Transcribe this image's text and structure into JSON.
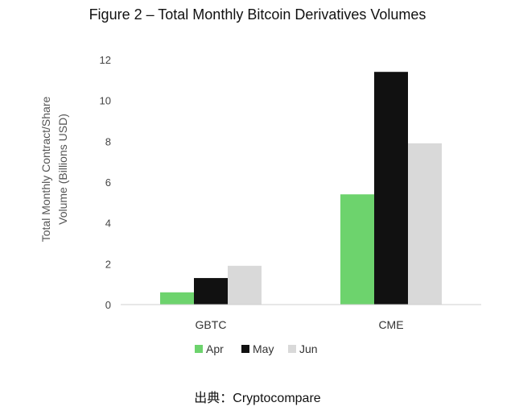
{
  "title": "Figure 2 – Total Monthly Bitcoin Derivatives Volumes",
  "source": "出典：Cryptocompare",
  "chart_data": {
    "type": "bar",
    "title": "Figure 2 – Total Monthly Bitcoin Derivatives Volumes",
    "ylabel_lines": [
      "Total Monthly Contract/Share",
      "Volume (Billions USD)"
    ],
    "categories": [
      "GBTC",
      "CME"
    ],
    "series": [
      {
        "name": "Apr",
        "color": "#6dd36d",
        "values": [
          0.6,
          5.4
        ]
      },
      {
        "name": "May",
        "color": "#111111",
        "values": [
          1.3,
          11.4
        ]
      },
      {
        "name": "Jun",
        "color": "#d9d9d9",
        "values": [
          1.9,
          7.9
        ]
      }
    ],
    "ylim": [
      0,
      12
    ],
    "yticks": [
      "0",
      "2",
      "4",
      "6",
      "8",
      "10",
      "12"
    ],
    "grid": false,
    "legend": "bottom"
  }
}
